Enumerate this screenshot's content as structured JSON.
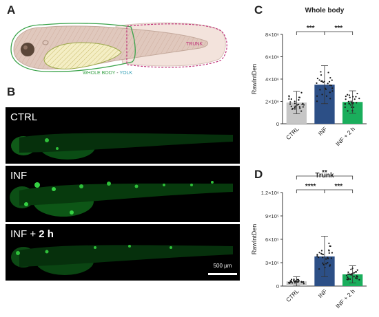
{
  "panels": {
    "a": "A",
    "b": "B",
    "c": "C",
    "d": "D"
  },
  "schematic": {
    "whole_body_label": "WHOLE BODY",
    "separator": " - ",
    "yolk_label": "YOLK",
    "trunk_label": "TRUNK",
    "colors": {
      "whole_body": "#3aa34a",
      "yolk": "#2a9bb3",
      "trunk": "#c0317a"
    }
  },
  "micrographs": [
    {
      "label": "CTRL"
    },
    {
      "label": "INF"
    },
    {
      "label_plain": "INF + ",
      "label_bold": "2 h"
    }
  ],
  "scalebar": {
    "text": "500 µm"
  },
  "chart_data": [
    {
      "type": "bar",
      "title": "Whole body",
      "ylabel": "RawIntDen",
      "categories": [
        "CTRL",
        "INF",
        "INF + 2 h"
      ],
      "values": [
        1900000,
        3500000,
        1950000
      ],
      "sd": [
        1000000,
        1700000,
        1000000
      ],
      "colors": [
        "#c6c6c6",
        "#2c4f86",
        "#1aae5c"
      ],
      "ylim": [
        0,
        8000000
      ],
      "yticks": [
        0,
        2000000,
        4000000,
        6000000,
        8000000
      ],
      "ytick_labels": [
        "0",
        "2×10⁶",
        "4×10⁶",
        "6×10⁶",
        "8×10⁶"
      ],
      "significance": [
        {
          "from": 0,
          "to": 1,
          "label": "***"
        },
        {
          "from": 1,
          "to": 2,
          "label": "***"
        }
      ]
    },
    {
      "type": "bar",
      "title": "Trunk",
      "ylabel": "RawIntDen",
      "categories": [
        "CTRL",
        "INF",
        "INF + 2 h"
      ],
      "values": [
        60000,
        380000,
        150000
      ],
      "sd": [
        60000,
        260000,
        110000
      ],
      "colors": [
        "#c6c6c6",
        "#2c4f86",
        "#1aae5c"
      ],
      "ylim": [
        0,
        1200000
      ],
      "yticks": [
        0,
        300000,
        600000,
        900000,
        1200000
      ],
      "ytick_labels": [
        "0",
        "3×10⁵",
        "6×10⁵",
        "9×10⁵",
        "1.2×10⁶"
      ],
      "significance": [
        {
          "from": 0,
          "to": 1,
          "label": "****"
        },
        {
          "from": 1,
          "to": 2,
          "label": "***"
        },
        {
          "from": 0,
          "to": 2,
          "label": "**"
        }
      ]
    }
  ]
}
